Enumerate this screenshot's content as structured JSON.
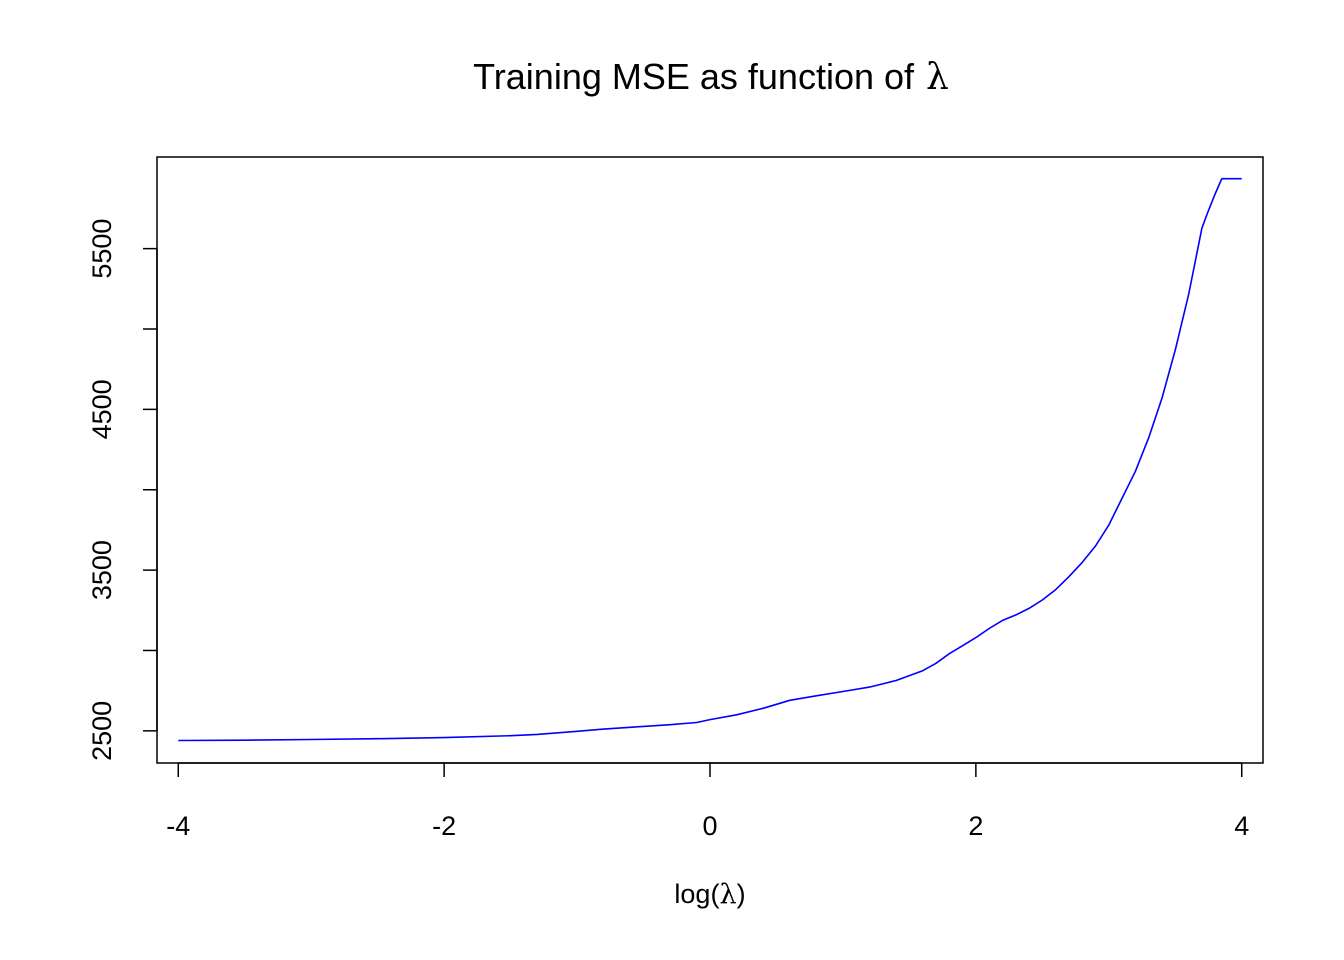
{
  "chart_data": {
    "type": "line",
    "title": "Training MSE as function of",
    "title_symbol": "λ",
    "xlabel_prefix": "log(",
    "xlabel_symbol": "λ",
    "xlabel_suffix": ")",
    "ylabel": "",
    "xlim": [
      -4.16,
      4.16
    ],
    "ylim": [
      2300,
      6070
    ],
    "x_ticks": [
      -4,
      -2,
      0,
      2,
      4
    ],
    "x_tick_labels": [
      "-4",
      "-2",
      "0",
      "2",
      "4"
    ],
    "y_ticks": [
      2500,
      3000,
      3500,
      4000,
      4500,
      5000,
      5500
    ],
    "y_tick_labels": [
      "2500",
      "",
      "3500",
      "",
      "4500",
      "",
      "5500"
    ],
    "grid": false,
    "legend": "none",
    "series_color": "#0000ff",
    "series": [
      {
        "x": [
          -4.0,
          -3.5,
          -3.0,
          -2.5,
          -2.0,
          -1.5,
          -1.3,
          -1.0,
          -0.8,
          -0.5,
          -0.3,
          -0.1,
          0.0,
          0.2,
          0.4,
          0.6,
          0.8,
          1.0,
          1.2,
          1.4,
          1.6,
          1.7,
          1.8,
          1.9,
          2.0,
          2.1,
          2.2,
          2.3,
          2.4,
          2.5,
          2.6,
          2.7,
          2.8,
          2.9,
          3.0,
          3.1,
          3.2,
          3.3,
          3.4,
          3.5,
          3.6,
          3.7,
          3.75,
          3.8,
          3.85,
          3.9,
          4.0
        ],
        "y": [
          2440,
          2442,
          2446,
          2451,
          2458,
          2470,
          2478,
          2497,
          2511,
          2528,
          2538,
          2552,
          2570,
          2600,
          2640,
          2690,
          2718,
          2745,
          2772,
          2813,
          2874,
          2920,
          2980,
          3030,
          3080,
          3137,
          3187,
          3221,
          3262,
          3314,
          3378,
          3459,
          3548,
          3650,
          3780,
          3948,
          4115,
          4324,
          4570,
          4870,
          5214,
          5627,
          5738,
          5840,
          5935,
          5935,
          5935
        ]
      }
    ]
  }
}
